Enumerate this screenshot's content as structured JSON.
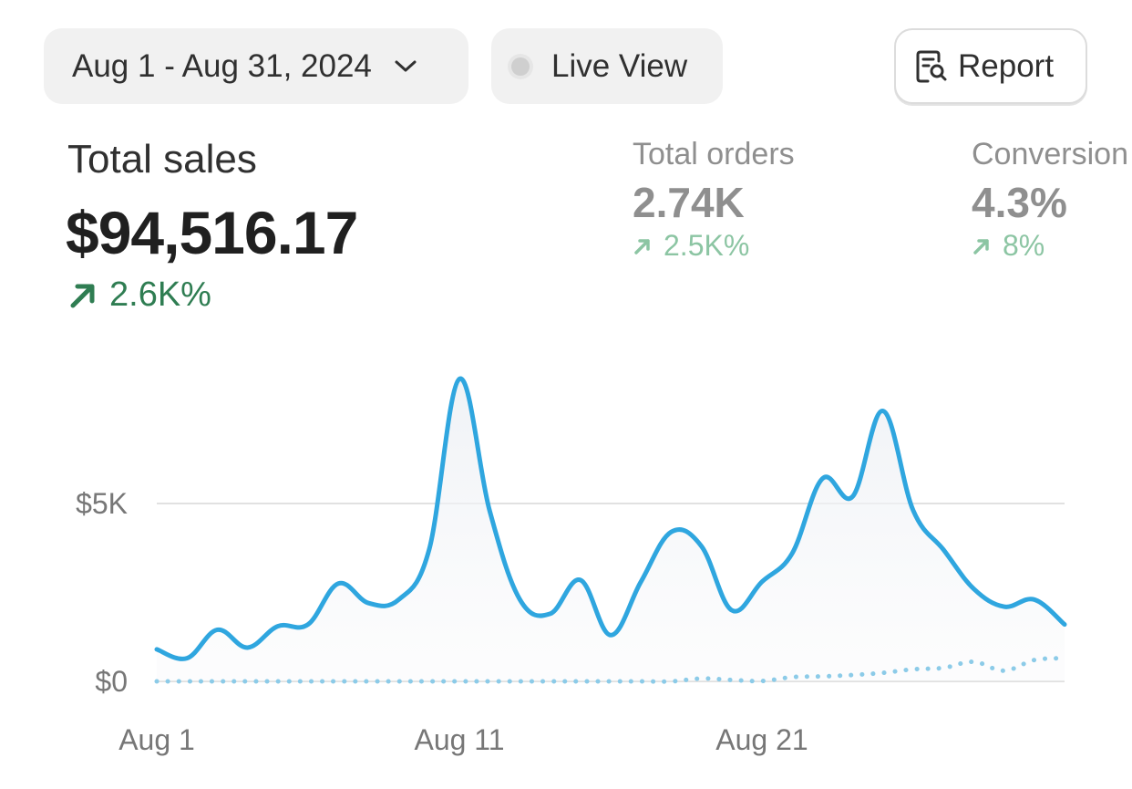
{
  "toolbar": {
    "date_range": "Aug 1 - Aug 31, 2024",
    "live_view_label": "Live View",
    "report_label": "Report"
  },
  "metrics": {
    "total_sales": {
      "label": "Total sales",
      "value": "$94,516.17",
      "delta": "2.6K%"
    },
    "total_orders": {
      "label": "Total orders",
      "value": "2.74K",
      "delta": "2.5K%"
    },
    "conversion": {
      "label": "Conversion",
      "value": "4.3%",
      "delta": "8%"
    }
  },
  "colors": {
    "primary_line": "#2fa6df",
    "comparison_line": "#8ccbe8",
    "positive_delta": "#2f7d52",
    "positive_delta_muted": "#8cc5a3"
  },
  "chart_data": {
    "type": "line",
    "x": [
      1,
      2,
      3,
      4,
      5,
      6,
      7,
      8,
      9,
      10,
      11,
      12,
      13,
      14,
      15,
      16,
      17,
      18,
      19,
      20,
      21,
      22,
      23,
      24,
      25,
      26,
      27,
      28,
      29,
      30,
      31
    ],
    "x_ticks": [
      "Aug 1",
      "Aug 11",
      "Aug 21"
    ],
    "y_ticks": [
      "$0",
      "$5K"
    ],
    "ylim": [
      0,
      9500
    ],
    "grid": true,
    "series": [
      {
        "values": [
          900,
          650,
          1450,
          950,
          1550,
          1600,
          2750,
          2200,
          2300,
          3700,
          8500,
          4800,
          2300,
          1900,
          2850,
          1300,
          2800,
          4200,
          3800,
          2000,
          2800,
          3600,
          5700,
          5200,
          7600,
          4800,
          3700,
          2600,
          2100,
          2300,
          1600
        ]
      },
      {
        "values": [
          0,
          0,
          0,
          0,
          0,
          0,
          0,
          0,
          0,
          0,
          0,
          0,
          0,
          0,
          0,
          0,
          0,
          0,
          80,
          40,
          10,
          120,
          140,
          180,
          240,
          340,
          380,
          550,
          300,
          600,
          650
        ]
      }
    ]
  }
}
